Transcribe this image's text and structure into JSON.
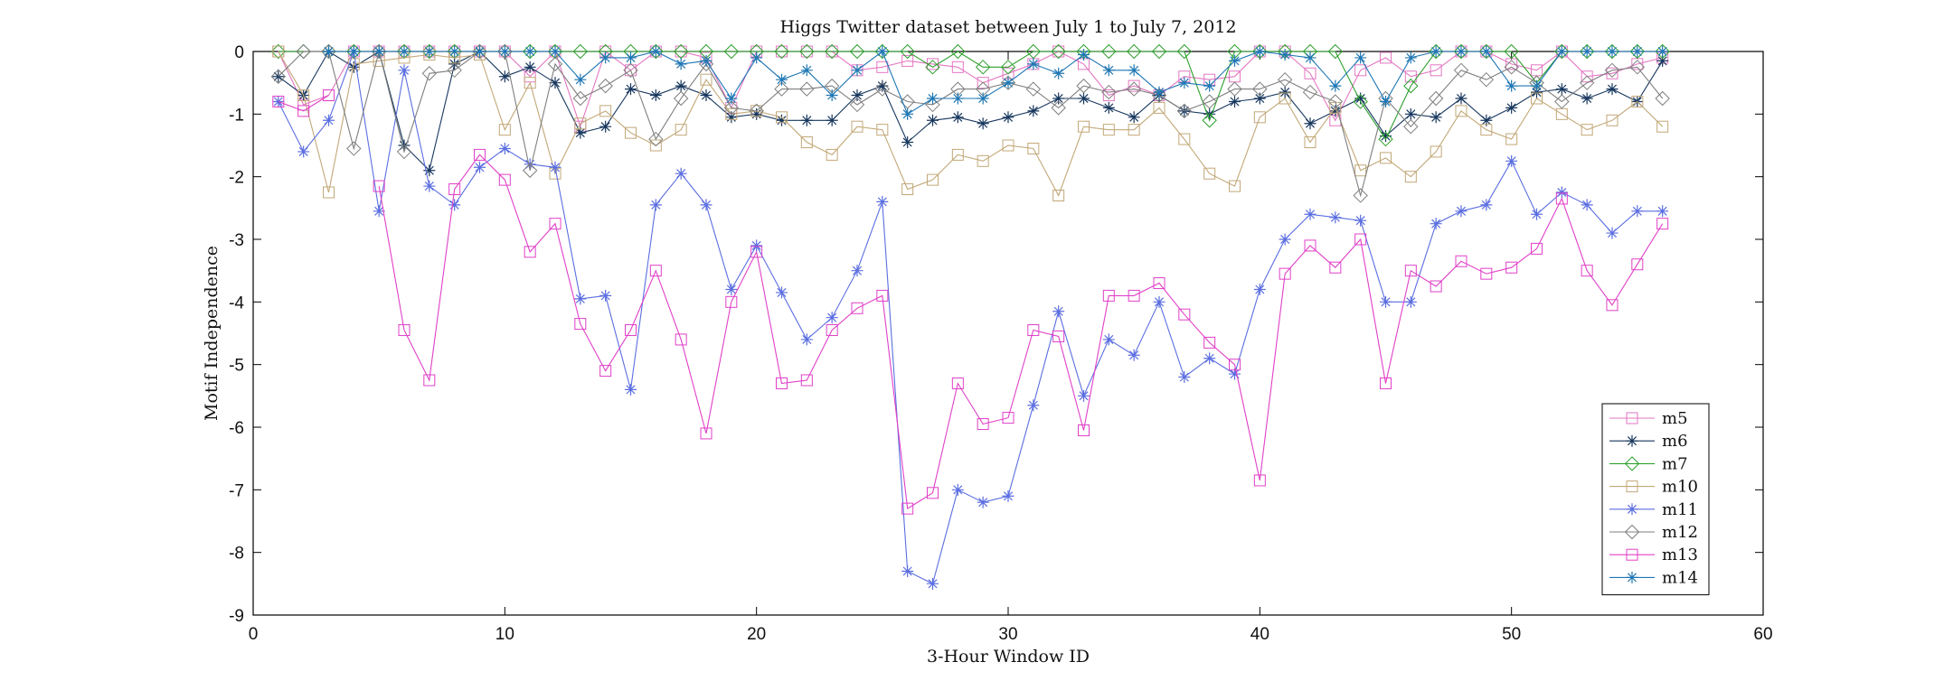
{
  "chart_data": {
    "type": "line",
    "title": "Higgs Twitter dataset between July 1 to July 7, 2012",
    "xlabel": "3-Hour Window ID",
    "ylabel": "Motif Independence",
    "xlim": [
      0,
      60
    ],
    "ylim": [
      -9,
      0
    ],
    "xticks": [
      0,
      10,
      20,
      30,
      40,
      50,
      60
    ],
    "yticks": [
      0,
      -1,
      -2,
      -3,
      -4,
      -5,
      -6,
      -7,
      -8,
      -9
    ],
    "grid": false,
    "legend_position": "bottom-right",
    "x": [
      1,
      2,
      3,
      4,
      5,
      6,
      7,
      8,
      9,
      10,
      11,
      12,
      13,
      14,
      15,
      16,
      17,
      18,
      19,
      20,
      21,
      22,
      23,
      24,
      25,
      26,
      27,
      28,
      29,
      30,
      31,
      32,
      33,
      34,
      35,
      36,
      37,
      38,
      39,
      40,
      41,
      42,
      43,
      44,
      45,
      46,
      47,
      48,
      49,
      50,
      51,
      52,
      53,
      54,
      55,
      56
    ],
    "series": [
      {
        "name": "m5",
        "color": "#e377c2",
        "marker": "square",
        "values": [
          0,
          -0.85,
          -0.7,
          0,
          0,
          0,
          0,
          0,
          0,
          0,
          -0.4,
          0,
          -1.2,
          0,
          -0.3,
          0,
          0,
          -0.1,
          -0.9,
          0,
          0,
          0,
          0,
          -0.3,
          -0.25,
          -0.15,
          -0.2,
          -0.25,
          -0.5,
          -0.35,
          -0.2,
          0,
          -0.2,
          -0.7,
          -0.55,
          -0.7,
          -0.4,
          -0.45,
          -0.4,
          0,
          0,
          -0.35,
          -1.1,
          -0.3,
          -0.1,
          -0.4,
          -0.3,
          0,
          0,
          -0.2,
          -0.3,
          0,
          -0.4,
          -0.35,
          -0.2,
          -0.1
        ]
      },
      {
        "name": "m6",
        "color": "#17375e",
        "marker": "star",
        "values": [
          -0.4,
          -0.7,
          0,
          -0.25,
          0,
          -1.5,
          -1.9,
          -0.2,
          0,
          -0.4,
          -0.25,
          -0.5,
          -1.3,
          -1.2,
          -0.6,
          -0.7,
          -0.55,
          -0.7,
          -1.05,
          -1.0,
          -1.1,
          -1.1,
          -1.1,
          -0.7,
          -0.55,
          -1.45,
          -1.1,
          -1.05,
          -1.15,
          -1.05,
          -0.95,
          -0.75,
          -0.75,
          -0.9,
          -1.05,
          -0.7,
          -0.95,
          -1.0,
          -0.8,
          -0.75,
          -0.65,
          -1.15,
          -0.95,
          -0.75,
          -1.35,
          -1.0,
          -1.05,
          -0.75,
          -1.1,
          -0.9,
          -0.65,
          -0.6,
          -0.75,
          -0.6,
          -0.8,
          -0.15
        ]
      },
      {
        "name": "m7",
        "color": "#2ca02c",
        "marker": "diamond",
        "values": [
          0,
          0,
          0,
          0,
          0,
          0,
          0,
          0,
          0,
          0,
          0,
          0,
          0,
          0,
          0,
          0,
          0,
          0,
          0,
          0,
          0,
          0,
          0,
          0,
          0,
          0,
          -0.25,
          0,
          -0.25,
          -0.25,
          0,
          0,
          0,
          0,
          0,
          0,
          0,
          -1.1,
          0,
          0,
          0,
          0,
          0,
          -0.8,
          -1.4,
          -0.55,
          0,
          0,
          0,
          0,
          -0.5,
          0,
          0,
          0,
          0,
          0
        ]
      },
      {
        "name": "m10",
        "color": "#c2a878",
        "marker": "square",
        "values": [
          0,
          -0.7,
          -2.25,
          -0.2,
          -0.15,
          -0.1,
          -0.05,
          -0.1,
          -0.05,
          -1.25,
          -0.5,
          -1.95,
          -1.15,
          -0.95,
          -1.3,
          -1.5,
          -1.25,
          -0.45,
          -1.0,
          -0.95,
          -1.05,
          -1.45,
          -1.65,
          -1.2,
          -1.25,
          -2.2,
          -2.05,
          -1.65,
          -1.75,
          -1.5,
          -1.55,
          -2.3,
          -1.2,
          -1.25,
          -1.25,
          -0.9,
          -1.4,
          -1.95,
          -2.15,
          -1.05,
          -0.75,
          -1.45,
          -0.9,
          -1.9,
          -1.7,
          -2.0,
          -1.6,
          -0.95,
          -1.25,
          -1.4,
          -0.75,
          -1.0,
          -1.25,
          -1.1,
          -0.8,
          -1.2
        ]
      },
      {
        "name": "m11",
        "color": "#5b6ee1",
        "marker": "star",
        "values": [
          -0.8,
          -1.6,
          -1.1,
          0,
          -2.55,
          -0.3,
          -2.15,
          -2.45,
          -1.85,
          -1.55,
          -1.8,
          -1.85,
          -3.95,
          -3.9,
          -5.4,
          -2.45,
          -1.95,
          -2.45,
          -3.8,
          -3.1,
          -3.85,
          -4.6,
          -4.25,
          -3.5,
          -2.4,
          -8.3,
          -8.5,
          -7.0,
          -7.2,
          -7.1,
          -5.65,
          -4.15,
          -5.5,
          -4.6,
          -4.85,
          -4.0,
          -5.2,
          -4.9,
          -5.15,
          -3.8,
          -3.0,
          -2.6,
          -2.65,
          -2.7,
          -4.0,
          -4.0,
          -2.75,
          -2.55,
          -2.45,
          -1.75,
          -2.6,
          -2.25,
          -2.45,
          -2.9,
          -2.55,
          -2.55
        ]
      },
      {
        "name": "m12",
        "color": "#7f7f7f",
        "marker": "diamond",
        "values": [
          -0.4,
          0,
          0,
          -1.55,
          0,
          -1.6,
          -0.35,
          -0.3,
          0,
          0,
          -1.9,
          -0.2,
          -0.75,
          -0.55,
          -0.3,
          -1.4,
          -0.75,
          -0.2,
          -0.9,
          -0.95,
          -0.6,
          -0.6,
          -0.55,
          -0.85,
          -0.6,
          -0.8,
          -0.85,
          -0.6,
          -0.6,
          -0.5,
          -0.6,
          -0.9,
          -0.55,
          -0.65,
          -0.6,
          -0.7,
          -0.95,
          -0.8,
          -0.6,
          -0.6,
          -0.45,
          -0.65,
          -0.8,
          -2.3,
          -0.75,
          -1.2,
          -0.75,
          -0.3,
          -0.45,
          -0.25,
          -0.5,
          -0.8,
          -0.5,
          -0.3,
          -0.25,
          -0.75
        ]
      },
      {
        "name": "m13",
        "color": "#e040c8",
        "marker": "square",
        "values": [
          -0.8,
          -0.95,
          -0.7,
          null,
          -2.15,
          -4.45,
          -5.25,
          -2.2,
          -1.65,
          -2.05,
          -3.2,
          -2.75,
          -4.35,
          -5.1,
          -4.45,
          -3.5,
          -4.6,
          -6.1,
          -4.0,
          -3.2,
          -5.3,
          -5.25,
          -4.45,
          -4.1,
          -3.9,
          -7.3,
          -7.05,
          -5.3,
          -5.95,
          -5.85,
          -4.45,
          -4.55,
          -6.05,
          -3.9,
          -3.9,
          -3.7,
          -4.2,
          -4.65,
          -5.0,
          -6.85,
          -3.55,
          -3.1,
          -3.45,
          -3.0,
          -5.3,
          -3.5,
          -3.75,
          -3.35,
          -3.55,
          -3.45,
          -3.15,
          -2.35,
          -3.5,
          -4.05,
          -3.4,
          -2.75
        ]
      },
      {
        "name": "m14",
        "color": "#1f77b4",
        "marker": "star",
        "values": [
          null,
          null,
          0,
          0,
          0,
          0,
          0,
          0,
          0,
          0,
          0,
          0,
          -0.45,
          -0.1,
          -0.1,
          0,
          -0.2,
          -0.15,
          -0.75,
          -0.1,
          -0.45,
          -0.3,
          -0.7,
          -0.3,
          0,
          -1.0,
          -0.75,
          -0.75,
          -0.75,
          -0.5,
          -0.2,
          -0.35,
          -0.05,
          -0.3,
          -0.3,
          -0.65,
          -0.5,
          -0.55,
          -0.15,
          0,
          -0.05,
          -0.1,
          -0.55,
          -0.1,
          -0.8,
          -0.1,
          0,
          0,
          0,
          -0.55,
          -0.55,
          0,
          0,
          0,
          0,
          0
        ]
      }
    ]
  }
}
